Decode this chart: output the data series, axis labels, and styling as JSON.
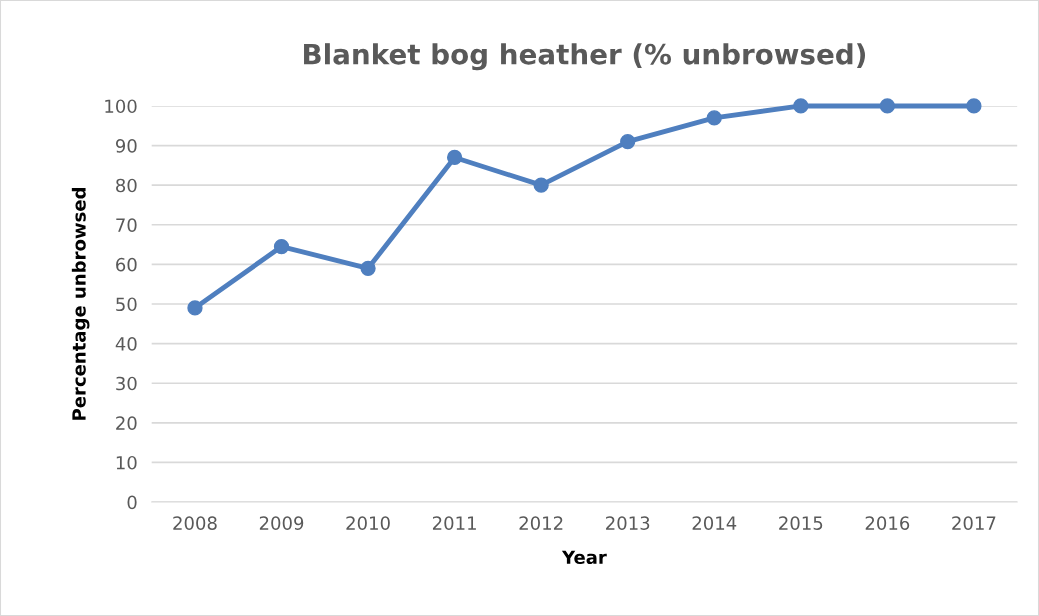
{
  "chart_data": {
    "type": "line",
    "title": "Blanket bog heather (% unbrowsed)",
    "xlabel": "Year",
    "ylabel": "Percentage unbrowsed",
    "categories": [
      "2008",
      "2009",
      "2010",
      "2011",
      "2012",
      "2013",
      "2014",
      "2015",
      "2016",
      "2017"
    ],
    "series": [
      {
        "color": "#4f7fbf",
        "values": [
          49,
          64.5,
          59,
          87,
          80,
          91,
          97,
          100,
          100,
          100
        ]
      }
    ],
    "ylim": [
      0,
      100
    ],
    "yticks": [
      0,
      10,
      20,
      30,
      40,
      50,
      60,
      70,
      80,
      90,
      100
    ],
    "grid": "y",
    "marker": "circle",
    "line_style": "solid"
  }
}
